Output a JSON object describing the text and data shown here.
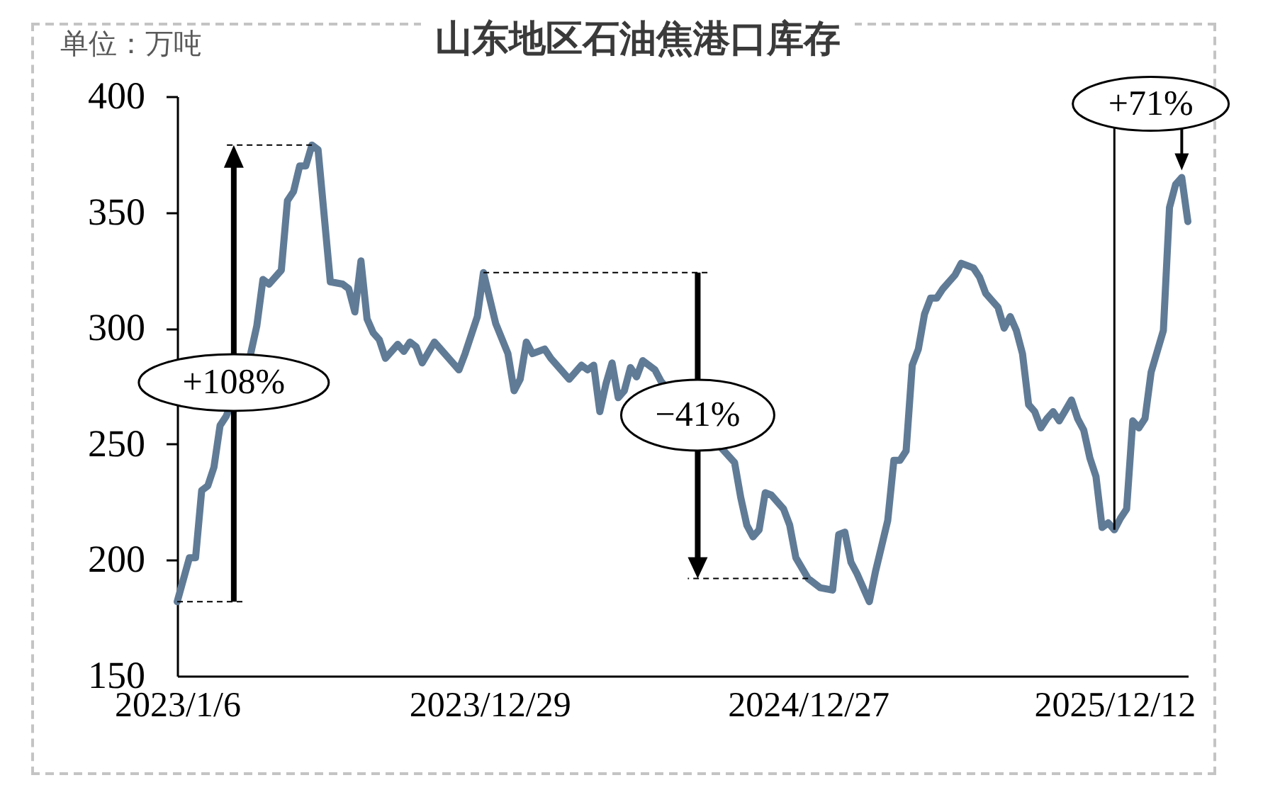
{
  "chart_data": {
    "type": "line",
    "title": "山东地区石油焦港口库存",
    "ylabel": "单位：万吨",
    "x": [
      "2023-01-06",
      "2023-01-20",
      "2023-01-27",
      "2023-02-03",
      "2023-02-10",
      "2023-02-17",
      "2023-02-24",
      "2023-03-03",
      "2023-03-31",
      "2023-04-07",
      "2023-04-14",
      "2023-04-21",
      "2023-05-05",
      "2023-05-12",
      "2023-05-19",
      "2023-05-26",
      "2023-06-02",
      "2023-06-09",
      "2023-06-16",
      "2023-06-30",
      "2023-07-14",
      "2023-07-21",
      "2023-07-28",
      "2023-08-04",
      "2023-08-11",
      "2023-08-18",
      "2023-08-25",
      "2023-09-01",
      "2023-09-15",
      "2023-09-22",
      "2023-09-29",
      "2023-10-06",
      "2023-10-13",
      "2023-10-27",
      "2023-11-03",
      "2023-11-24",
      "2023-12-01",
      "2023-12-15",
      "2023-12-22",
      "2023-12-29",
      "2024-01-05",
      "2024-01-19",
      "2024-01-26",
      "2024-02-02",
      "2024-02-09",
      "2024-02-16",
      "2024-03-01",
      "2024-03-08",
      "2024-03-29",
      "2024-04-12",
      "2024-04-19",
      "2024-04-26",
      "2024-05-03",
      "2024-05-10",
      "2024-05-17",
      "2024-05-24",
      "2024-05-31",
      "2024-06-07",
      "2024-06-14",
      "2024-06-21",
      "2024-07-05",
      "2024-07-12",
      "2024-10-04",
      "2024-10-11",
      "2024-10-18",
      "2024-10-25",
      "2024-11-01",
      "2024-11-08",
      "2024-11-15",
      "2024-11-29",
      "2024-12-06",
      "2024-12-13",
      "2024-12-27",
      "2025-01-10",
      "2025-01-24",
      "2025-01-31",
      "2025-02-07",
      "2025-02-14",
      "2025-02-21",
      "2025-03-07",
      "2025-03-14",
      "2025-03-28",
      "2025-04-04",
      "2025-04-11",
      "2025-04-18",
      "2025-04-25",
      "2025-05-02",
      "2025-05-09",
      "2025-05-16",
      "2025-05-23",
      "2025-05-30",
      "2025-06-06",
      "2025-06-13",
      "2025-06-20",
      "2025-06-27",
      "2025-07-04",
      "2025-07-11",
      "2025-07-18",
      "2025-07-25",
      "2025-08-01",
      "2025-08-08",
      "2025-08-15",
      "2025-08-22",
      "2025-08-29",
      "2025-09-05",
      "2025-09-12",
      "2025-09-19",
      "2025-09-26",
      "2025-10-03",
      "2025-10-10",
      "2025-10-24",
      "2025-10-31",
      "2025-11-07",
      "2025-11-14",
      "2025-11-21",
      "2025-11-28",
      "2025-12-05",
      "2025-12-12",
      "2025-12-19",
      "2025-12-26",
      "2026-01-02",
      "2026-01-09",
      "2026-01-16",
      "2026-01-23",
      "2026-01-30",
      "2026-02-06",
      "2026-02-13",
      "2026-02-20",
      "2026-02-27",
      "2026-03-06"
    ],
    "series": [
      {
        "color": "#607b96",
        "values": [
          182,
          201,
          201,
          230,
          232,
          240,
          258,
          262,
          289,
          301,
          321,
          319,
          325,
          355,
          359,
          370,
          370,
          379,
          377,
          320,
          319,
          317,
          307,
          329,
          304,
          298,
          295,
          287,
          293,
          290,
          294,
          292,
          285,
          294,
          291,
          282,
          289,
          305,
          324,
          313,
          302,
          289,
          273,
          278,
          294,
          289,
          291,
          287,
          278,
          284,
          282,
          284,
          264,
          276,
          285,
          270,
          273,
          283,
          279,
          286,
          282,
          277,
          242,
          227,
          215,
          210,
          213,
          229,
          228,
          222,
          215,
          201,
          192,
          188,
          187,
          211,
          212,
          199,
          194,
          182,
          195,
          217,
          243,
          243,
          247,
          284,
          291,
          306,
          313,
          313,
          317,
          320,
          323,
          328,
          327,
          326,
          322,
          315,
          312,
          309,
          300,
          305,
          299,
          289,
          267,
          264,
          257,
          261,
          264,
          260,
          269,
          261,
          256,
          244,
          236,
          214,
          216,
          213,
          218,
          222,
          260,
          257,
          261,
          281,
          290,
          299,
          352,
          362,
          365,
          346
        ]
      }
    ],
    "xlim": [
      "2023-01-06",
      "2026-03-06"
    ],
    "xticks": [
      {
        "value": "2023-01-06",
        "label": "2023/1/6"
      },
      {
        "value": "2023-12-29",
        "label": "2023/12/29"
      },
      {
        "value": "2024-12-27",
        "label": "2024/12/27"
      },
      {
        "value": "2025-12-12",
        "label": "2025/12/12"
      }
    ],
    "ylim": [
      150,
      400
    ],
    "yticks": [
      150,
      200,
      250,
      300,
      350,
      400
    ],
    "annotations": [
      "+108%",
      "−41%",
      {
        "text": "+71%",
        "x": "2025-12-12",
        "y": 213
      }
    ]
  }
}
